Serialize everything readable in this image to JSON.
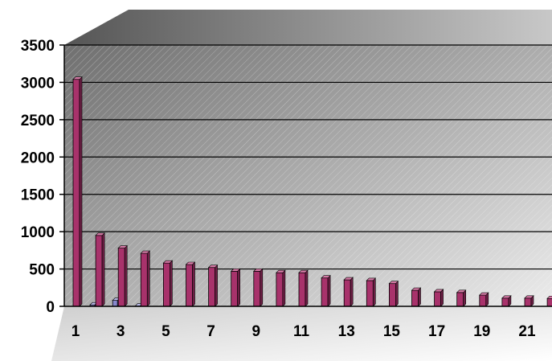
{
  "chart_data": {
    "type": "bar",
    "categories": [
      "1",
      "2",
      "3",
      "4",
      "5",
      "6",
      "7",
      "8",
      "9",
      "10",
      "11",
      "12",
      "13",
      "14",
      "15",
      "16",
      "17",
      "18",
      "19",
      "20",
      "21",
      "22"
    ],
    "x_tick_labels": [
      "1",
      "3",
      "5",
      "7",
      "9",
      "11",
      "13",
      "15",
      "17",
      "19",
      "21"
    ],
    "y_tick_labels": [
      "0",
      "500",
      "1000",
      "1500",
      "2000",
      "2500",
      "3000",
      "3500"
    ],
    "series": [
      {
        "values": [
          3040,
          950,
          780,
          710,
          580,
          560,
          520,
          470,
          470,
          450,
          450,
          380,
          355,
          345,
          305,
          215,
          195,
          185,
          150,
          110,
          110,
          105
        ],
        "color": "#a8326b"
      },
      {
        "values": [
          0,
          20,
          80,
          5,
          0,
          0,
          0,
          0,
          0,
          0,
          0,
          0,
          0,
          0,
          0,
          0,
          0,
          0,
          0,
          0,
          0,
          0
        ],
        "color": "#8888cc"
      }
    ],
    "title": "",
    "xlabel": "",
    "ylabel": "",
    "ylim": [
      0,
      3500
    ],
    "grid": true,
    "legend": "none",
    "style": "3d-perspective-hatched-background"
  }
}
